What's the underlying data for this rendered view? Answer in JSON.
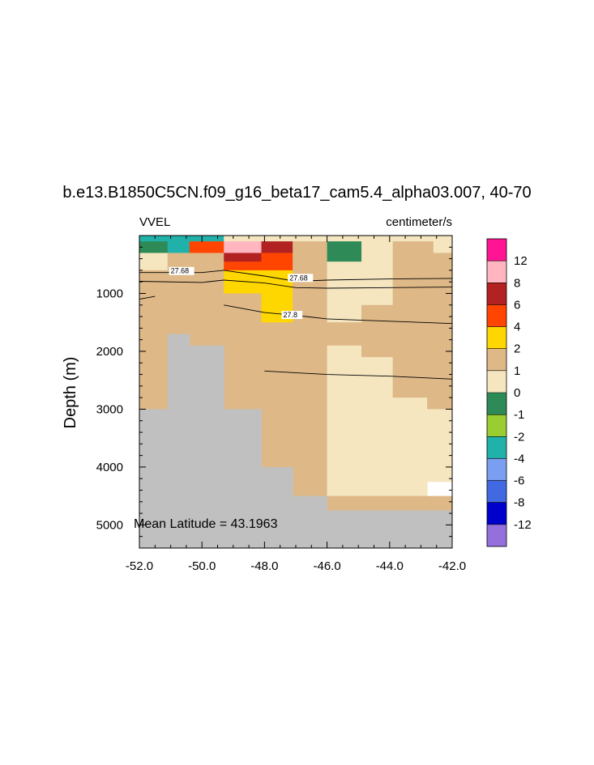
{
  "chart_data": {
    "type": "heatmap",
    "title": "b.e13.B1850C5CN.f09_g16_beta17_cam5.4_alpha03.007, 40-70",
    "left_string": "VVEL",
    "right_string": "centimeter/s",
    "ylabel": "Depth (m)",
    "annotation": "Mean Latitude = 43.1963",
    "xlim": [
      -52.0,
      -42.0
    ],
    "ylim": [
      5400,
      0
    ],
    "y_reversed": true,
    "x_ticks": [
      -52.0,
      -50.0,
      -48.0,
      -46.0,
      -44.0,
      -42.0
    ],
    "x_tick_labels": [
      "-52.0",
      "-50.0",
      "-48.0",
      "-46.0",
      "-44.0",
      "-42.0"
    ],
    "y_ticks": [
      1000,
      2000,
      3000,
      4000,
      5000
    ],
    "y_tick_labels": [
      "1000",
      "2000",
      "3000",
      "4000",
      "5000"
    ],
    "colorbar": {
      "colors": [
        "#9370db",
        "#0000cd",
        "#4169e1",
        "#7b9ff0",
        "#20b2aa",
        "#9acd32",
        "#2e8b57",
        "#f5e6c0",
        "#deb887",
        "#ffd700",
        "#ff4500",
        "#b22222",
        "#ffb6c1",
        "#ff1493"
      ],
      "labels": [
        "-12",
        "-8",
        "-6",
        "-4",
        "-2",
        "-1",
        "0",
        "1",
        "2",
        "4",
        "6",
        "8",
        "12"
      ]
    },
    "land_color": "#c0c0c0",
    "cells": [
      {
        "x0": -52.0,
        "x1": -51.1,
        "y0": 0,
        "y1": 100,
        "v": -4
      },
      {
        "x0": -51.1,
        "x1": -49.3,
        "y0": 0,
        "y1": 100,
        "v": -4
      },
      {
        "x0": -49.3,
        "x1": -42.0,
        "y0": 0,
        "y1": 100,
        "v": 0
      },
      {
        "x0": -52.0,
        "x1": -51.1,
        "y0": 100,
        "y1": 300,
        "v": -1
      },
      {
        "x0": -51.1,
        "x1": -50.4,
        "y0": 100,
        "y1": 300,
        "v": -4
      },
      {
        "x0": -50.4,
        "x1": -49.3,
        "y0": 100,
        "y1": 300,
        "v": 4
      },
      {
        "x0": -49.3,
        "x1": -48.1,
        "y0": 100,
        "y1": 300,
        "v": 8
      },
      {
        "x0": -48.1,
        "x1": -47.1,
        "y0": 100,
        "y1": 300,
        "v": 6
      },
      {
        "x0": -47.1,
        "x1": -46.0,
        "y0": 100,
        "y1": 300,
        "v": 1
      },
      {
        "x0": -46.0,
        "x1": -44.9,
        "y0": 100,
        "y1": 300,
        "v": -1
      },
      {
        "x0": -44.9,
        "x1": -43.9,
        "y0": 100,
        "y1": 300,
        "v": 0
      },
      {
        "x0": -43.9,
        "x1": -42.6,
        "y0": 100,
        "y1": 300,
        "v": 1
      },
      {
        "x0": -42.6,
        "x1": -42.0,
        "y0": 100,
        "y1": 300,
        "v": 0
      },
      {
        "x0": -52.0,
        "x1": -51.1,
        "y0": 300,
        "y1": 450,
        "v": 0
      },
      {
        "x0": -51.1,
        "x1": -50.4,
        "y0": 300,
        "y1": 450,
        "v": 1
      },
      {
        "x0": -50.4,
        "x1": -49.3,
        "y0": 300,
        "y1": 450,
        "v": 1
      },
      {
        "x0": -49.3,
        "x1": -48.1,
        "y0": 300,
        "y1": 450,
        "v": 6
      },
      {
        "x0": -48.1,
        "x1": -47.1,
        "y0": 300,
        "y1": 450,
        "v": 4
      },
      {
        "x0": -47.1,
        "x1": -46.0,
        "y0": 300,
        "y1": 450,
        "v": 1
      },
      {
        "x0": -46.0,
        "x1": -44.9,
        "y0": 300,
        "y1": 450,
        "v": -1
      },
      {
        "x0": -44.9,
        "x1": -43.9,
        "y0": 300,
        "y1": 450,
        "v": 0
      },
      {
        "x0": -43.9,
        "x1": -42.0,
        "y0": 300,
        "y1": 450,
        "v": 1
      },
      {
        "x0": -52.0,
        "x1": -51.1,
        "y0": 450,
        "y1": 600,
        "v": 0
      },
      {
        "x0": -51.1,
        "x1": -49.3,
        "y0": 450,
        "y1": 600,
        "v": 1
      },
      {
        "x0": -49.3,
        "x1": -48.1,
        "y0": 450,
        "y1": 600,
        "v": 4
      },
      {
        "x0": -48.1,
        "x1": -47.1,
        "y0": 450,
        "y1": 600,
        "v": 4
      },
      {
        "x0": -47.1,
        "x1": -46.0,
        "y0": 450,
        "y1": 600,
        "v": 1
      },
      {
        "x0": -46.0,
        "x1": -43.9,
        "y0": 450,
        "y1": 600,
        "v": 0
      },
      {
        "x0": -43.9,
        "x1": -42.0,
        "y0": 450,
        "y1": 600,
        "v": 1
      },
      {
        "x0": -52.0,
        "x1": -49.3,
        "y0": 600,
        "y1": 1000,
        "v": 1
      },
      {
        "x0": -49.3,
        "x1": -48.1,
        "y0": 600,
        "y1": 1000,
        "v": 2
      },
      {
        "x0": -48.1,
        "x1": -47.1,
        "y0": 600,
        "y1": 1000,
        "v": 2
      },
      {
        "x0": -47.1,
        "x1": -46.0,
        "y0": 600,
        "y1": 1000,
        "v": 1
      },
      {
        "x0": -46.0,
        "x1": -43.9,
        "y0": 600,
        "y1": 1000,
        "v": 0
      },
      {
        "x0": -43.9,
        "x1": -42.0,
        "y0": 600,
        "y1": 1000,
        "v": 1
      },
      {
        "x0": -52.0,
        "x1": -48.1,
        "y0": 1000,
        "y1": 1500,
        "v": 1
      },
      {
        "x0": -48.1,
        "x1": -47.1,
        "y0": 1000,
        "y1": 1500,
        "v": 2
      },
      {
        "x0": -47.1,
        "x1": -46.0,
        "y0": 1000,
        "y1": 1500,
        "v": 1
      },
      {
        "x0": -46.0,
        "x1": -44.9,
        "y0": 1000,
        "y1": 1500,
        "v": 0
      },
      {
        "x0": -44.9,
        "x1": -43.9,
        "y0": 1000,
        "y1": 1200,
        "v": 0
      },
      {
        "x0": -44.9,
        "x1": -43.9,
        "y0": 1200,
        "y1": 1500,
        "v": 1
      },
      {
        "x0": -43.9,
        "x1": -42.0,
        "y0": 1000,
        "y1": 1500,
        "v": 1
      },
      {
        "x0": -52.0,
        "x1": -46.0,
        "y0": 1500,
        "y1": 5400,
        "v": 1
      },
      {
        "x0": -46.0,
        "x1": -44.9,
        "y0": 1500,
        "y1": 1900,
        "v": 1
      },
      {
        "x0": -46.0,
        "x1": -44.9,
        "y0": 1900,
        "y1": 4500,
        "v": 0
      },
      {
        "x0": -44.9,
        "x1": -43.9,
        "y0": 1500,
        "y1": 2100,
        "v": 1
      },
      {
        "x0": -44.9,
        "x1": -43.9,
        "y0": 2100,
        "y1": 4750,
        "v": 0
      },
      {
        "x0": -43.9,
        "x1": -42.8,
        "y0": 1500,
        "y1": 2800,
        "v": 1
      },
      {
        "x0": -43.9,
        "x1": -42.8,
        "y0": 2800,
        "y1": 4500,
        "v": 0
      },
      {
        "x0": -42.8,
        "x1": -42.0,
        "y0": 1500,
        "y1": 3000,
        "v": 1
      },
      {
        "x0": -42.8,
        "x1": -42.0,
        "y0": 3000,
        "y1": 4250,
        "v": 0
      },
      {
        "x0": -46.0,
        "x1": -42.0,
        "y0": 4500,
        "y1": 4750,
        "v": 1
      }
    ],
    "land": [
      {
        "x0": -51.1,
        "x1": -50.4,
        "y0": 1700,
        "y1": 5400
      },
      {
        "x0": -50.4,
        "x1": -49.3,
        "y0": 1900,
        "y1": 5400
      },
      {
        "x0": -52.0,
        "x1": -51.1,
        "y0": 3000,
        "y1": 5400
      },
      {
        "x0": -49.3,
        "x1": -48.1,
        "y0": 3000,
        "y1": 5400
      },
      {
        "x0": -48.1,
        "x1": -47.1,
        "y0": 4000,
        "y1": 5400
      },
      {
        "x0": -47.1,
        "x1": -46.0,
        "y0": 4500,
        "y1": 5400
      },
      {
        "x0": -46.0,
        "x1": -42.0,
        "y0": 4750,
        "y1": 5400
      }
    ],
    "contours": [
      {
        "label": "27.68",
        "label_at": [
          -51.0,
          640
        ],
        "points": [
          [
            -52.0,
            640
          ],
          [
            -50.0,
            640
          ],
          [
            -49.3,
            600
          ],
          [
            -48.0,
            700
          ],
          [
            -47.0,
            790
          ],
          [
            -46.0,
            770
          ],
          [
            -44.0,
            750
          ],
          [
            -42.0,
            740
          ]
        ]
      },
      {
        "label": "27.68",
        "label_at": [
          -47.2,
          760
        ],
        "points": [
          [
            -52.0,
            790
          ],
          [
            -50.0,
            810
          ],
          [
            -49.3,
            770
          ],
          [
            -48.0,
            820
          ],
          [
            -47.0,
            900
          ],
          [
            -46.0,
            910
          ],
          [
            -44.0,
            900
          ],
          [
            -42.0,
            890
          ]
        ]
      },
      {
        "label": "",
        "label_at": null,
        "points": [
          [
            -52.0,
            1100
          ],
          [
            -51.5,
            1050
          ]
        ]
      },
      {
        "label": "27.8",
        "label_at": [
          -47.4,
          1400
        ],
        "points": [
          [
            -49.3,
            1200
          ],
          [
            -48.0,
            1330
          ],
          [
            -47.0,
            1380
          ],
          [
            -46.0,
            1440
          ],
          [
            -44.0,
            1480
          ],
          [
            -42.0,
            1520
          ]
        ]
      },
      {
        "label": "",
        "label_at": null,
        "points": [
          [
            -48.0,
            2340
          ],
          [
            -46.0,
            2400
          ],
          [
            -44.0,
            2430
          ],
          [
            -42.0,
            2480
          ]
        ]
      }
    ]
  }
}
